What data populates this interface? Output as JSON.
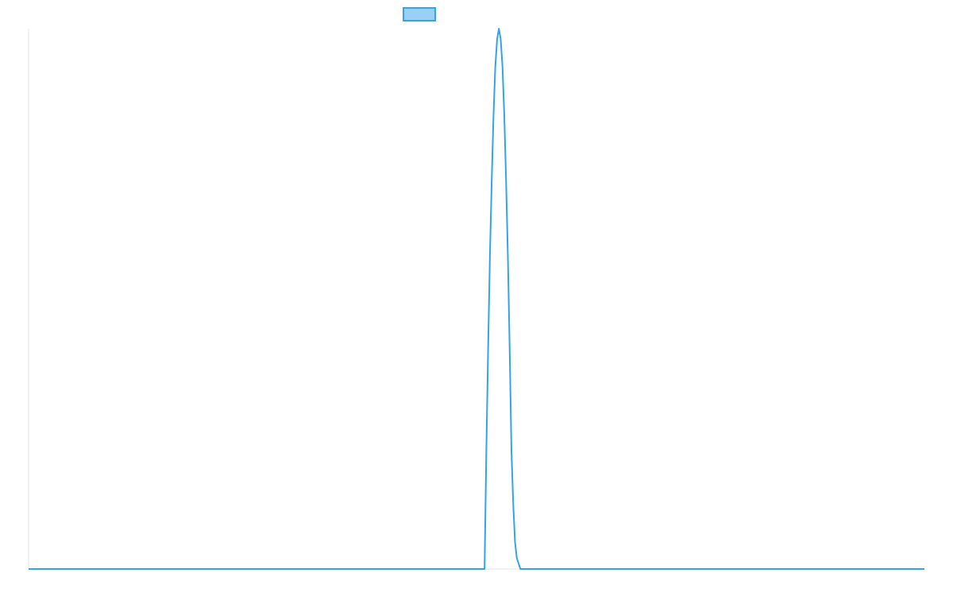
{
  "chart_data": {
    "type": "line",
    "title": "",
    "xlabel": "",
    "ylabel": "",
    "grid": false,
    "legend": {
      "placement": "top-center",
      "entries": [
        {
          "label": "",
          "color": "#36a2eb",
          "fill": "#9ad0f5"
        }
      ]
    },
    "xlim": [
      0,
      1000
    ],
    "ylim": [
      0,
      1
    ],
    "series": [
      {
        "color": "#36a2eb",
        "x": [
          0,
          509,
          511,
          513,
          515,
          517,
          519,
          521,
          523,
          525,
          527,
          529,
          531,
          533,
          535,
          537,
          539,
          541,
          543,
          545,
          547,
          549,
          550,
          1000
        ],
        "y": [
          0,
          0,
          0.22,
          0.41,
          0.58,
          0.72,
          0.84,
          0.93,
          0.98,
          1.0,
          0.98,
          0.93,
          0.84,
          0.72,
          0.58,
          0.41,
          0.22,
          0.12,
          0.05,
          0.02,
          0.01,
          0,
          0,
          0
        ]
      }
    ]
  }
}
